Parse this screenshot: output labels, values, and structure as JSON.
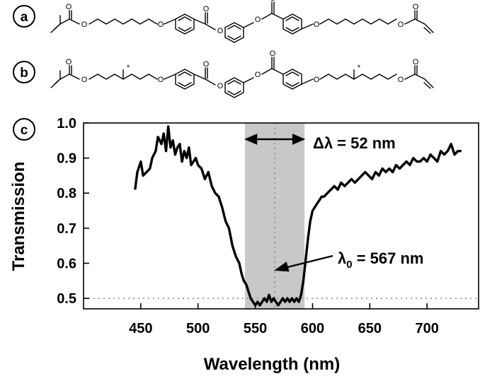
{
  "panels": {
    "a": "a",
    "b": "b",
    "c": "c"
  },
  "molecule": {
    "oxygen": "O",
    "chiral_mark": "*"
  },
  "chart_data": {
    "type": "line",
    "xlabel": "Wavelength (nm)",
    "ylabel": "Transmission",
    "xlim": [
      400,
      745
    ],
    "ylim": [
      0.47,
      1.0
    ],
    "x_ticks": [
      450,
      500,
      550,
      600,
      650,
      700
    ],
    "y_ticks": [
      0.5,
      0.6,
      0.7,
      0.8,
      0.9,
      1.0
    ],
    "y_tick_labels": [
      "0.5",
      "0.6",
      "0.7",
      "0.8",
      "0.9",
      "1.0"
    ],
    "grid": false,
    "series": [
      {
        "x": [
          445,
          447,
          450,
          452,
          455,
          458,
          460,
          463,
          465,
          468,
          470,
          472,
          474,
          476,
          478,
          480,
          482,
          484,
          486,
          488,
          490,
          492,
          494,
          496,
          498,
          500,
          503,
          506,
          509,
          512,
          515,
          518,
          521,
          524,
          527,
          530,
          533,
          536,
          538,
          540,
          542,
          544,
          546,
          548,
          550,
          552,
          554,
          556,
          558,
          560,
          562,
          564,
          566,
          568,
          570,
          572,
          574,
          576,
          578,
          580,
          582,
          584,
          586,
          588,
          590,
          592,
          594,
          596,
          598,
          600,
          602,
          604,
          606,
          608,
          610,
          613,
          616,
          619,
          622,
          625,
          628,
          631,
          634,
          637,
          640,
          643,
          646,
          649,
          652,
          655,
          658,
          661,
          664,
          667,
          670,
          673,
          676,
          679,
          682,
          685,
          688,
          691,
          694,
          697,
          700,
          703,
          706,
          709,
          712,
          715,
          718,
          721,
          724,
          727,
          730
        ],
        "y": [
          0.81,
          0.86,
          0.89,
          0.85,
          0.86,
          0.87,
          0.9,
          0.92,
          0.96,
          0.94,
          0.97,
          0.92,
          0.99,
          0.93,
          0.95,
          0.91,
          0.93,
          0.94,
          0.89,
          0.92,
          0.9,
          0.93,
          0.88,
          0.89,
          0.9,
          0.88,
          0.87,
          0.84,
          0.86,
          0.82,
          0.8,
          0.79,
          0.76,
          0.72,
          0.7,
          0.65,
          0.62,
          0.6,
          0.57,
          0.55,
          0.54,
          0.52,
          0.5,
          0.49,
          0.48,
          0.49,
          0.48,
          0.49,
          0.5,
          0.49,
          0.51,
          0.49,
          0.5,
          0.49,
          0.48,
          0.49,
          0.5,
          0.49,
          0.5,
          0.49,
          0.5,
          0.49,
          0.5,
          0.49,
          0.51,
          0.55,
          0.61,
          0.67,
          0.72,
          0.75,
          0.76,
          0.77,
          0.78,
          0.79,
          0.79,
          0.8,
          0.81,
          0.82,
          0.81,
          0.83,
          0.82,
          0.83,
          0.84,
          0.83,
          0.84,
          0.85,
          0.86,
          0.85,
          0.84,
          0.86,
          0.85,
          0.87,
          0.86,
          0.87,
          0.86,
          0.88,
          0.87,
          0.88,
          0.89,
          0.88,
          0.9,
          0.89,
          0.89,
          0.9,
          0.89,
          0.91,
          0.9,
          0.89,
          0.92,
          0.91,
          0.92,
          0.94,
          0.91,
          0.92,
          0.92
        ]
      }
    ],
    "reference_line_y": 0.5,
    "center_line_x": 567,
    "band_x": [
      541,
      593
    ],
    "annotations": {
      "bandwidth": "Δλ = 52 nm",
      "center_prefix": "λ",
      "center_subscript": "0",
      "center_value": " = 567 nm"
    }
  }
}
